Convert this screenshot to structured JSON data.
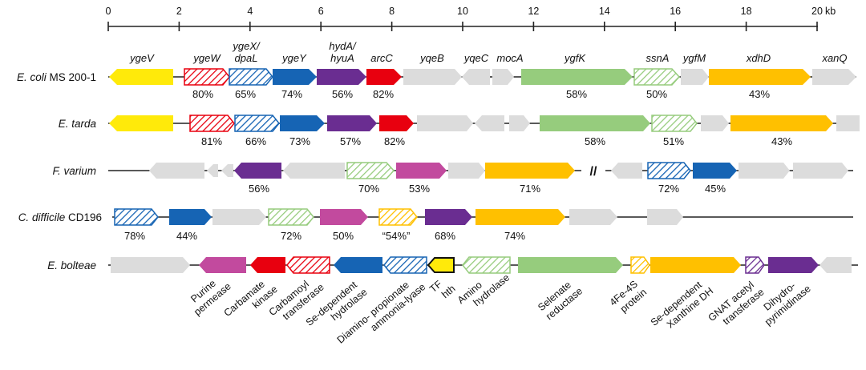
{
  "scale": {
    "ticks": [
      "0",
      "2",
      "4",
      "6",
      "8",
      "10",
      "12",
      "14",
      "16",
      "18",
      "20"
    ],
    "unit": "kb"
  },
  "colors": {
    "yellow": "#FFEA0A",
    "red": "#E8000F",
    "blue": "#1664B4",
    "purple": "#6A2D91",
    "grey": "#DCDCDC",
    "green": "#96CC7D",
    "orange": "#FFC000",
    "magenta": "#C24A9E"
  },
  "species": [
    {
      "name_italic": "E. coli",
      "name_plain": "MS 200-1"
    },
    {
      "name_italic": "E. tarda",
      "name_plain": ""
    },
    {
      "name_italic": "F. varium",
      "name_plain": ""
    },
    {
      "name_italic": "C. difficile",
      "name_plain": "CD196"
    },
    {
      "name_italic": "E. bolteae",
      "name_plain": ""
    }
  ],
  "gene_labels": [
    {
      "line1": "ygeV",
      "line2": ""
    },
    {
      "line1": "ygeW",
      "line2": ""
    },
    {
      "line1": "ygeX/",
      "line2": "dpaL"
    },
    {
      "line1": "ygeY",
      "line2": ""
    },
    {
      "line1": "hydA/",
      "line2": "hyuA"
    },
    {
      "line1": "arcC",
      "line2": ""
    },
    {
      "line1": "yqeB",
      "line2": ""
    },
    {
      "line1": "yqeC",
      "line2": ""
    },
    {
      "line1": "mocA",
      "line2": ""
    },
    {
      "line1": "ygfK",
      "line2": ""
    },
    {
      "line1": "ssnA",
      "line2": ""
    },
    {
      "line1": "ygfM",
      "line2": ""
    },
    {
      "line1": "xdhD",
      "line2": ""
    },
    {
      "line1": "xanQ",
      "line2": ""
    }
  ],
  "percentages": {
    "ecoli": [
      "80%",
      "65%",
      "74%",
      "56%",
      "82%",
      "58%",
      "50%",
      "43%"
    ],
    "etarda": [
      "81%",
      "66%",
      "73%",
      "57%",
      "82%",
      "58%",
      "51%",
      "43%"
    ],
    "fvarium": [
      "56%",
      "70%",
      "53%",
      "71%",
      "72%",
      "45%"
    ],
    "cdifficile": [
      "78%",
      "44%",
      "72%",
      "50%",
      "“54%”",
      "68%",
      "74%"
    ]
  },
  "functions": [
    {
      "line1": "Purine",
      "line2": "permease"
    },
    {
      "line1": "Carbamate",
      "line2": "kinase"
    },
    {
      "line1": "Carbamoyl",
      "line2": "transferase"
    },
    {
      "line1": "Se-dependent",
      "line2": "hydrolase"
    },
    {
      "line1": "Diamino- propionate",
      "line2": "ammonia-lyase"
    },
    {
      "line1": "TF",
      "line2": "hth"
    },
    {
      "line1": "Amino",
      "line2": "hydrolase"
    },
    {
      "line1": "Selenate",
      "line2": "reductase"
    },
    {
      "line1": "4Fe-4S",
      "line2": "protein"
    },
    {
      "line1": "Se-dependent",
      "line2": "Xanthine DH"
    },
    {
      "line1": "GNAT acetyl",
      "line2": "transferase"
    },
    {
      "line1": "Dihydro-",
      "line2": "pyrimidinase"
    }
  ],
  "gap_marker": "//"
}
